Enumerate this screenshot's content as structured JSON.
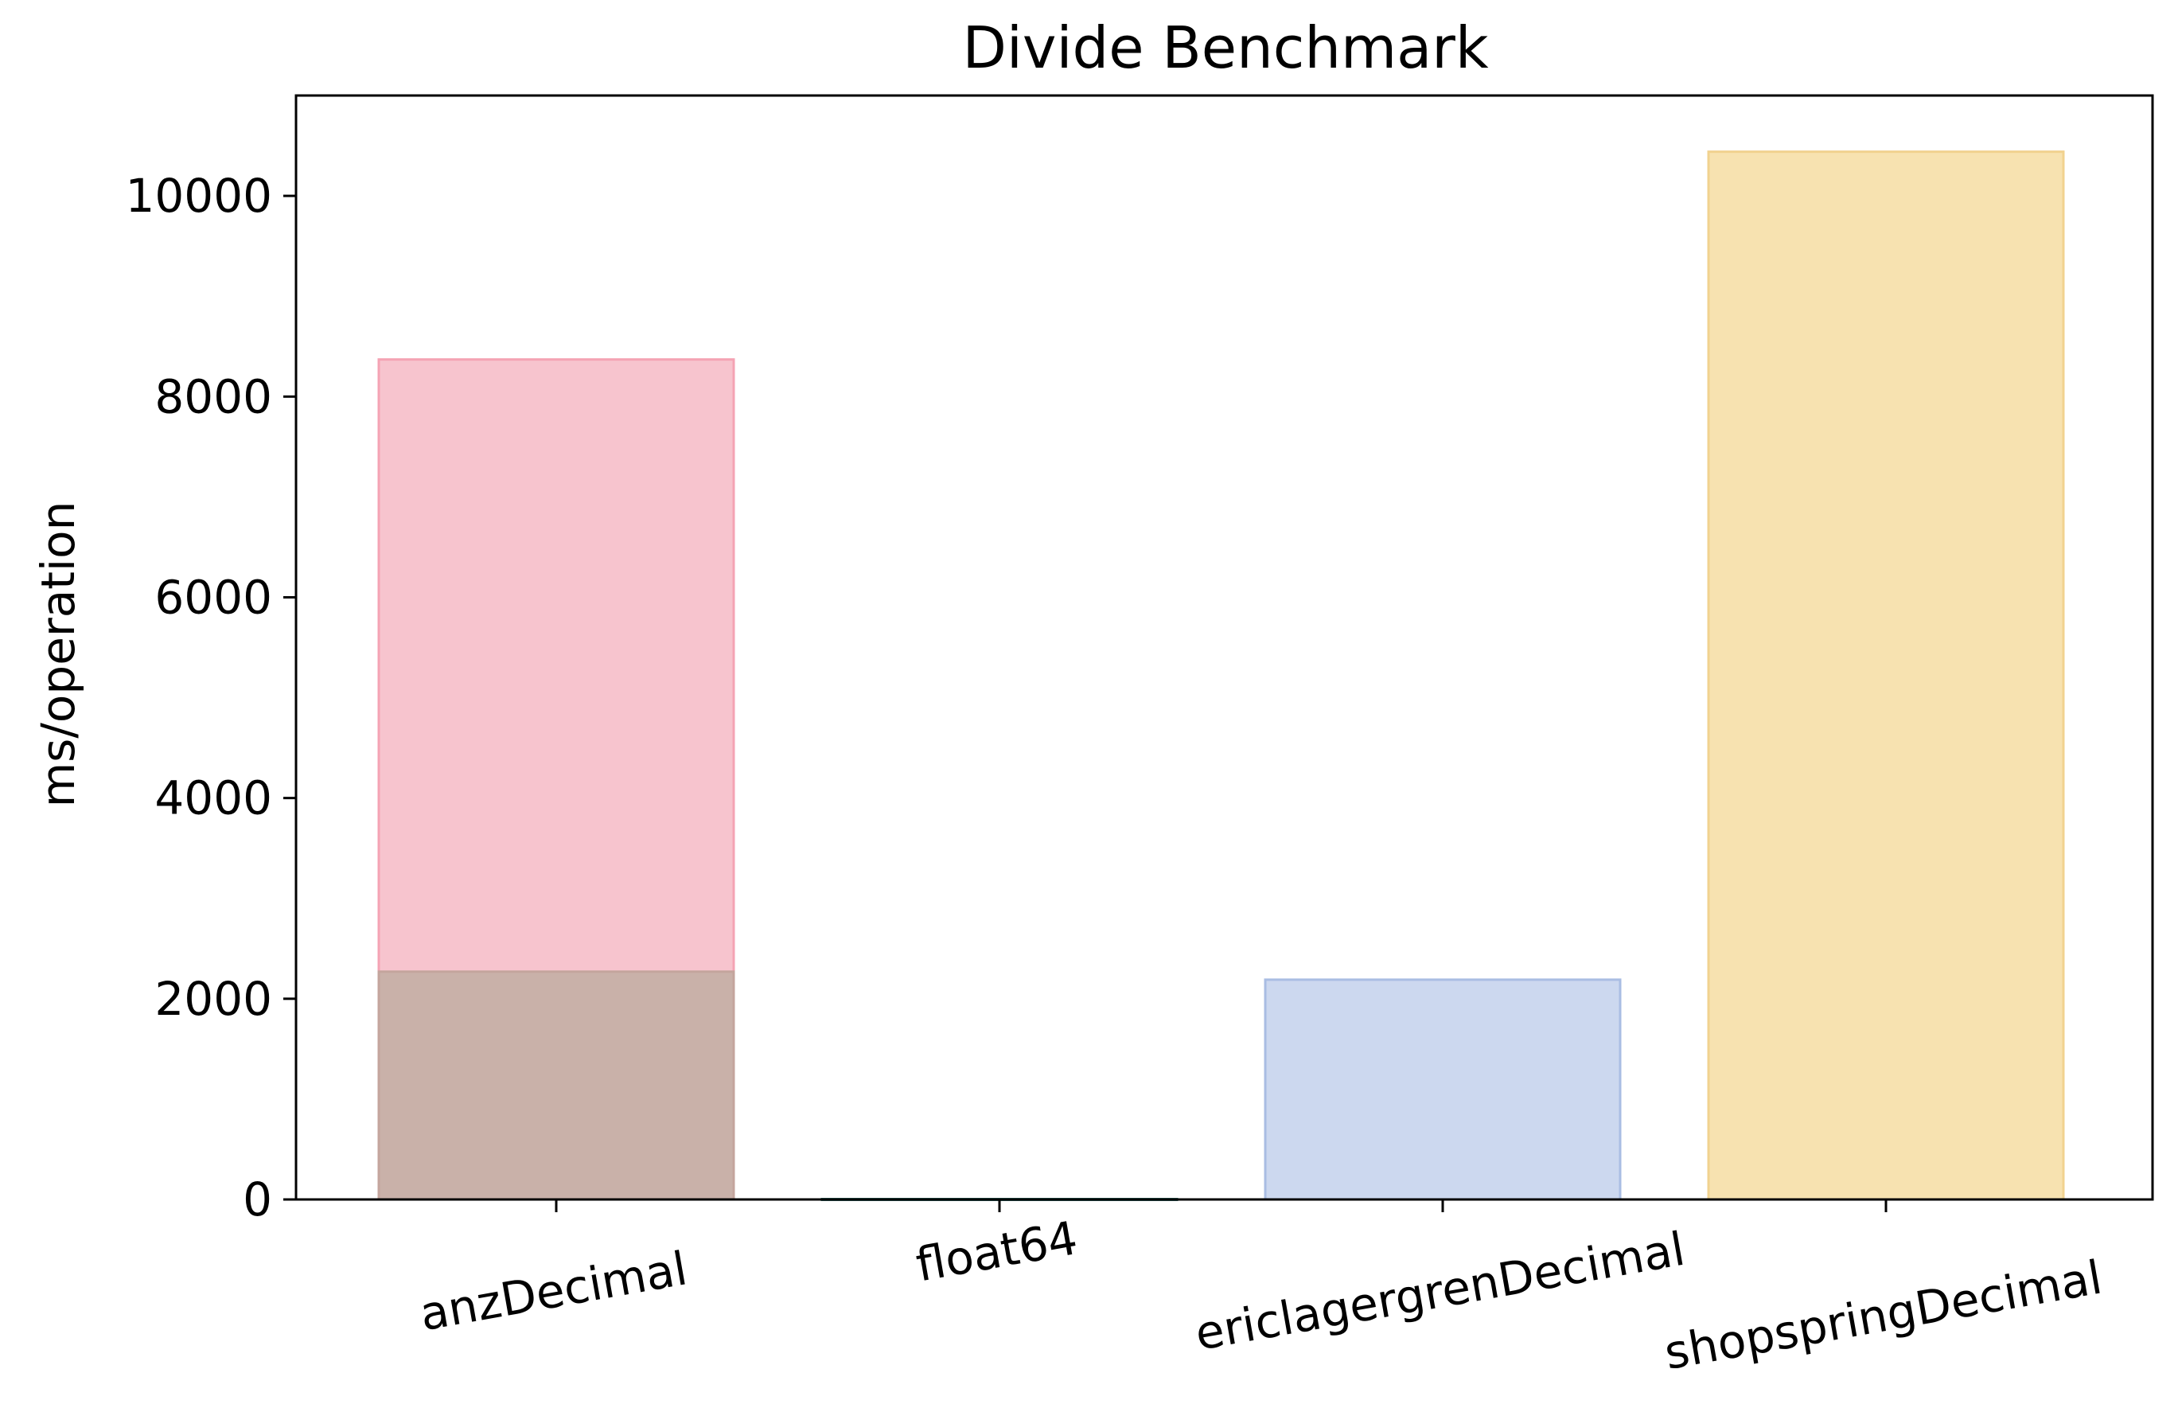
{
  "chart_data": {
    "type": "bar",
    "title": "Divide Benchmark",
    "xlabel": "",
    "ylabel": "ms/operation",
    "ylim": [
      0,
      11000
    ],
    "yticks": [
      0,
      2000,
      4000,
      6000,
      8000,
      10000
    ],
    "ytick_labels": [
      "0",
      "2000",
      "4000",
      "6000",
      "8000",
      "10000"
    ],
    "grid": false,
    "categories": [
      "anzDecimal",
      "float64",
      "ericlagergrenDecimal",
      "shopspringDecimal"
    ],
    "bars": [
      {
        "category": "anzDecimal",
        "value": 8370,
        "fill": "#f7c4ce",
        "stroke": "#f4a3b4"
      },
      {
        "category": "anzDecimal",
        "value": 2270,
        "fill": "#c9b1a9",
        "stroke": "#c4a59d"
      },
      {
        "category": "float64",
        "value": 4,
        "fill": "#2e6b66",
        "stroke": "#2e6b66"
      },
      {
        "category": "ericlagergrenDecimal",
        "value": 2190,
        "fill": "#ccd8ef",
        "stroke": "#a9bde3"
      },
      {
        "category": "shopspringDecimal",
        "value": 10440,
        "fill": "#f7e2b0",
        "stroke": "#f1d28f"
      }
    ]
  }
}
